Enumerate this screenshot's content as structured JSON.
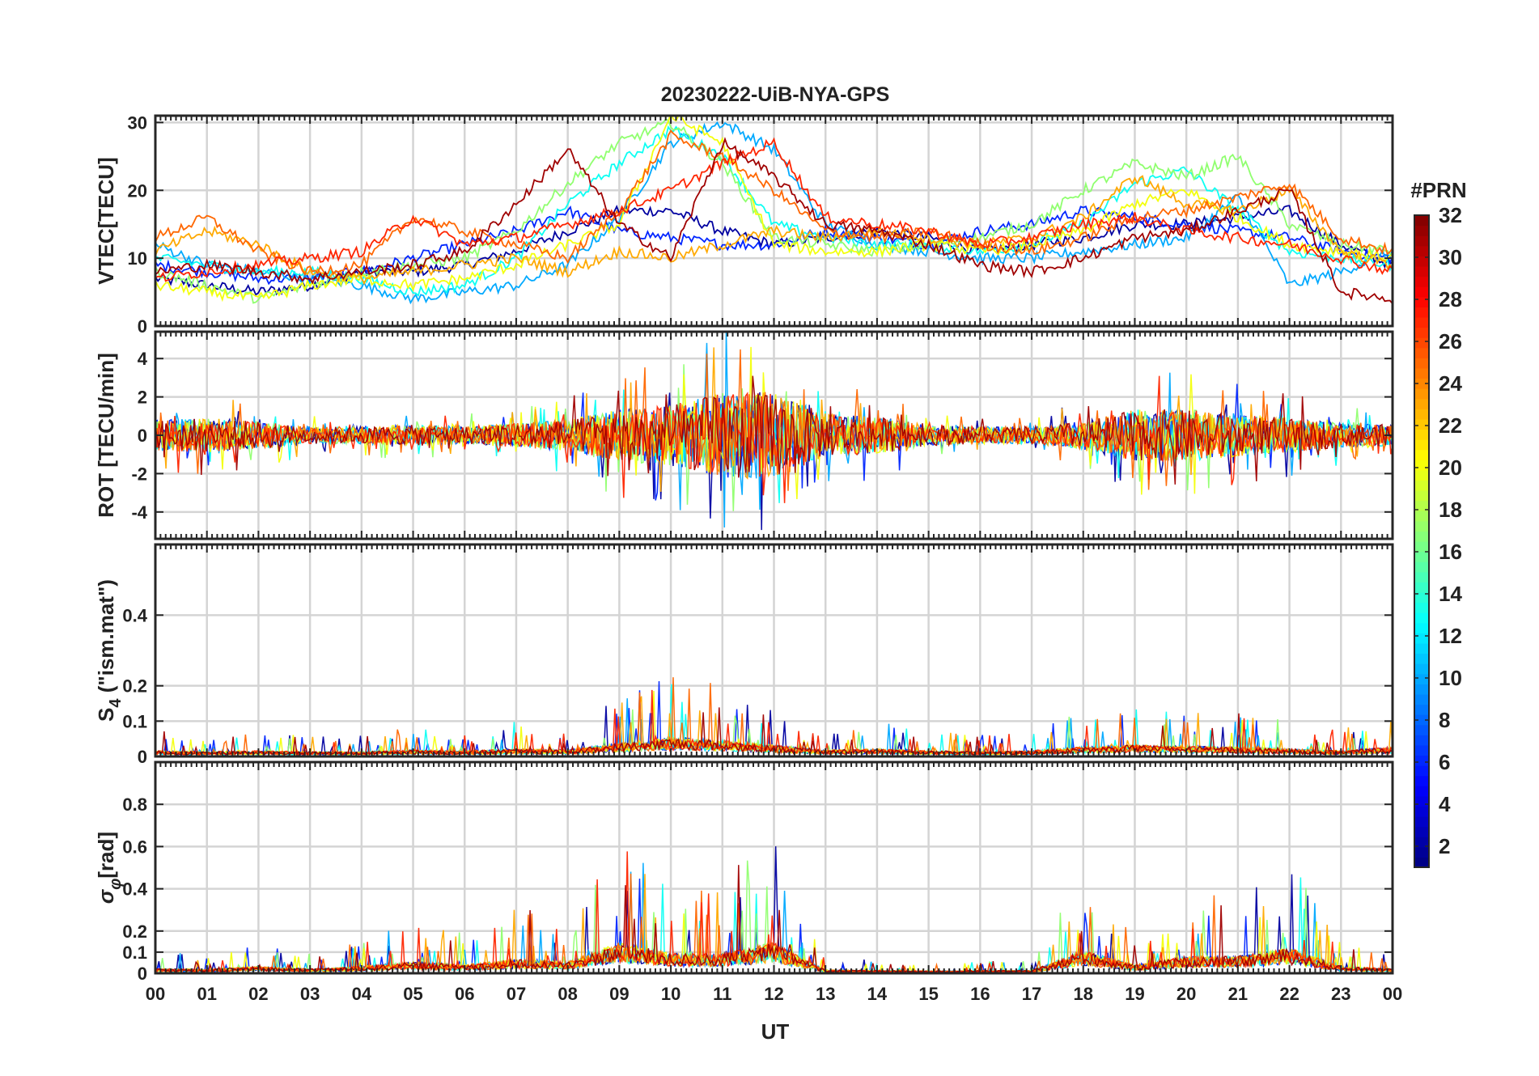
{
  "chart_data": {
    "type": "line",
    "title": "20230222-UiB-NYA-GPS",
    "xlabel": "UT",
    "x_ticks": [
      "00",
      "01",
      "02",
      "03",
      "04",
      "05",
      "06",
      "07",
      "08",
      "09",
      "10",
      "11",
      "12",
      "13",
      "14",
      "15",
      "16",
      "17",
      "18",
      "19",
      "20",
      "21",
      "22",
      "23",
      "00"
    ],
    "xlim": [
      0,
      24
    ],
    "grid": true,
    "colormap": "jet",
    "colorbar": {
      "title": "#PRN",
      "range": [
        1,
        32
      ],
      "ticks": [
        2,
        4,
        6,
        8,
        10,
        12,
        14,
        16,
        18,
        20,
        22,
        24,
        26,
        28,
        30,
        32
      ],
      "placement": "right"
    },
    "panels": [
      {
        "ylabel": "VTEC[TECU]",
        "ylim": [
          0,
          31
        ],
        "yticks": [
          0,
          10,
          20,
          30
        ],
        "ytick_labels": [
          "0",
          "10",
          "20",
          "30"
        ],
        "series": [
          {
            "prn": 2,
            "x": [
              0,
              1,
              2,
              3,
              4,
              5,
              6,
              7,
              8,
              9,
              10,
              11,
              12,
              13,
              14,
              15,
              16,
              17,
              18,
              19,
              20,
              21,
              22,
              23,
              24
            ],
            "y": [
              7,
              6,
              5,
              6,
              8,
              8,
              9,
              11,
              14,
              17,
              17,
              14,
              12,
              13,
              14,
              13,
              11,
              12,
              13,
              15,
              15,
              16,
              17,
              12,
              9
            ]
          },
          {
            "prn": 6,
            "x": [
              0,
              1,
              2,
              3,
              4,
              5,
              6,
              7,
              8,
              9,
              10,
              11,
              12,
              13,
              14,
              15,
              16,
              17,
              18,
              19,
              20,
              21,
              22,
              23,
              24
            ],
            "y": [
              9,
              8,
              7,
              7,
              8,
              10,
              12,
              14,
              17,
              14,
              13,
              12,
              12,
              14,
              13,
              12,
              14,
              15,
              17,
              16,
              15,
              14,
              13,
              11,
              10
            ]
          },
          {
            "prn": 10,
            "x": [
              0,
              1,
              2,
              3,
              4,
              5,
              6,
              7,
              8,
              9,
              10,
              11,
              12,
              13,
              14,
              15,
              16,
              17,
              18,
              19,
              20,
              21,
              22,
              23,
              24
            ],
            "y": [
              12,
              9,
              8,
              7,
              6,
              4,
              5,
              6,
              9,
              16,
              27,
              30,
              26,
              15,
              12,
              11,
              10,
              10,
              11,
              12,
              13,
              19,
              6,
              8,
              11
            ]
          },
          {
            "prn": 13,
            "x": [
              0,
              1,
              2,
              3,
              4,
              5,
              6,
              7,
              8,
              9,
              10,
              11,
              12,
              13,
              14,
              15,
              16,
              17,
              18,
              19,
              20,
              21,
              22,
              23,
              24
            ],
            "y": [
              10,
              9,
              8,
              8,
              7,
              5,
              6,
              10,
              18,
              24,
              29,
              25,
              15,
              13,
              12,
              12,
              11,
              12,
              15,
              21,
              23,
              17,
              11,
              10,
              9
            ]
          },
          {
            "prn": 17,
            "x": [
              0,
              1,
              2,
              3,
              4,
              5,
              6,
              7,
              8,
              9,
              10,
              11,
              12,
              13,
              14,
              15,
              16,
              17,
              18,
              19,
              20,
              21,
              22,
              23,
              24
            ],
            "y": [
              8,
              6,
              4,
              6,
              8,
              9,
              10,
              14,
              21,
              27,
              30,
              24,
              13,
              12,
              11,
              12,
              13,
              15,
              20,
              24,
              22,
              25,
              15,
              12,
              11
            ]
          },
          {
            "prn": 20,
            "x": [
              0,
              1,
              2,
              3,
              4,
              5,
              6,
              7,
              8,
              9,
              10,
              11,
              12,
              13,
              14,
              15,
              16,
              17,
              18,
              19,
              20,
              21,
              22,
              23,
              24
            ],
            "y": [
              6,
              5,
              4,
              6,
              7,
              6,
              7,
              9,
              12,
              15,
              31,
              27,
              12,
              11,
              11,
              12,
              11,
              12,
              14,
              18,
              20,
              16,
              12,
              11,
              10
            ]
          },
          {
            "prn": 23,
            "x": [
              0,
              1,
              2,
              3,
              4,
              5,
              6,
              7,
              8,
              9,
              10,
              11,
              12,
              13,
              14,
              15,
              16,
              17,
              18,
              19,
              20,
              21,
              22,
              23,
              24
            ],
            "y": [
              11,
              14,
              12,
              8,
              7,
              8,
              9,
              10,
              8,
              11,
              10,
              12,
              14,
              13,
              14,
              13,
              12,
              13,
              16,
              22,
              18,
              17,
              20,
              11,
              9
            ]
          },
          {
            "prn": 25,
            "x": [
              0,
              1,
              2,
              3,
              4,
              5,
              6,
              7,
              8,
              9,
              10,
              11,
              12,
              13,
              14,
              15,
              16,
              17,
              18,
              19,
              20,
              21,
              22,
              23,
              24
            ],
            "y": [
              13,
              16,
              11,
              8,
              9,
              16,
              14,
              12,
              10,
              17,
              28,
              25,
              20,
              14,
              13,
              14,
              12,
              11,
              13,
              16,
              17,
              19,
              21,
              13,
              11
            ]
          },
          {
            "prn": 27,
            "x": [
              0,
              1,
              2,
              3,
              4,
              5,
              6,
              7,
              8,
              9,
              10,
              11,
              12,
              13,
              14,
              15,
              16,
              17,
              18,
              19,
              20,
              21,
              22,
              23,
              24
            ],
            "y": [
              7,
              8,
              9,
              10,
              11,
              16,
              12,
              13,
              15,
              17,
              20,
              24,
              27,
              16,
              15,
              14,
              12,
              13,
              15,
              16,
              14,
              13,
              12,
              10,
              8
            ]
          },
          {
            "prn": 31,
            "x": [
              0,
              1,
              2,
              3,
              4,
              5,
              6,
              7,
              8,
              9,
              10,
              11,
              12,
              13,
              14,
              15,
              16,
              17,
              18,
              19,
              20,
              21,
              22,
              23,
              24
            ],
            "y": [
              8,
              9,
              8,
              7,
              8,
              9,
              11,
              18,
              26,
              15,
              10,
              27,
              22,
              15,
              14,
              12,
              9,
              8,
              10,
              13,
              14,
              17,
              20,
              5,
              4
            ]
          }
        ]
      },
      {
        "ylabel": "ROT [TECU/min]",
        "ylim": [
          -5.4,
          5.4
        ],
        "yticks": [
          -4,
          -2,
          0,
          2,
          4
        ],
        "ytick_labels": [
          "-4",
          "-2",
          "0",
          "2",
          "4"
        ],
        "envelope": {
          "x": [
            0,
            1,
            2,
            3,
            4,
            5,
            6,
            7,
            8,
            9,
            10,
            11,
            12,
            13,
            14,
            15,
            16,
            17,
            18,
            19,
            20,
            21,
            22,
            23,
            24
          ],
          "amplitude": [
            1.8,
            2.0,
            1.6,
            1.0,
            1.0,
            1.2,
            1.0,
            1.4,
            1.8,
            3.0,
            3.5,
            5.0,
            5.0,
            2.5,
            2.2,
            1.2,
            1.0,
            1.0,
            1.6,
            3.0,
            3.0,
            2.5,
            2.0,
            1.4,
            1.2
          ]
        },
        "series_prn": [
          2,
          6,
          10,
          13,
          17,
          20,
          23,
          25,
          27,
          31
        ]
      },
      {
        "ylabel": "S_4 (\"ism.mat\")",
        "ylabel_main": "S",
        "ylabel_sub": "4",
        "ylabel_rest": " (\"ism.mat\")",
        "ylim": [
          0,
          0.6
        ],
        "yticks": [
          0,
          0.1,
          0.2,
          0.4
        ],
        "ytick_labels": [
          "0",
          "0.1",
          "0.2",
          "0.4"
        ],
        "envelope": {
          "x": [
            0,
            1,
            2,
            3,
            4,
            5,
            6,
            7,
            8,
            9,
            10,
            11,
            12,
            13,
            14,
            15,
            16,
            17,
            18,
            19,
            20,
            21,
            22,
            23,
            24
          ],
          "amplitude": [
            0.06,
            0.05,
            0.06,
            0.05,
            0.05,
            0.07,
            0.06,
            0.08,
            0.07,
            0.14,
            0.2,
            0.17,
            0.12,
            0.07,
            0.08,
            0.06,
            0.05,
            0.06,
            0.1,
            0.12,
            0.11,
            0.1,
            0.08,
            0.06,
            0.1
          ]
        },
        "series_prn": [
          2,
          6,
          10,
          13,
          17,
          20,
          23,
          25,
          27,
          31
        ]
      },
      {
        "ylabel": "σ_φ[rad]",
        "ylabel_main": "σ",
        "ylabel_sub": "φ",
        "ylabel_rest": "[rad]",
        "ylim": [
          0,
          1.0
        ],
        "yticks": [
          0,
          0.1,
          0.2,
          0.4,
          0.6,
          0.8
        ],
        "ytick_labels": [
          "0",
          "0.1",
          "0.2",
          "0.4",
          "0.6",
          "0.8"
        ],
        "envelope": {
          "x": [
            0,
            1,
            2,
            3,
            4,
            5,
            6,
            7,
            8,
            9,
            10,
            11,
            12,
            13,
            14,
            15,
            16,
            17,
            18,
            19,
            20,
            21,
            22,
            23,
            24
          ],
          "amplitude": [
            0.08,
            0.07,
            0.12,
            0.08,
            0.12,
            0.2,
            0.15,
            0.25,
            0.2,
            0.55,
            0.35,
            0.35,
            0.55,
            0.06,
            0.05,
            0.04,
            0.05,
            0.05,
            0.4,
            0.15,
            0.3,
            0.3,
            0.45,
            0.12,
            0.08
          ]
        },
        "series_prn": [
          2,
          6,
          10,
          13,
          17,
          20,
          23,
          25,
          27,
          31
        ]
      }
    ]
  }
}
